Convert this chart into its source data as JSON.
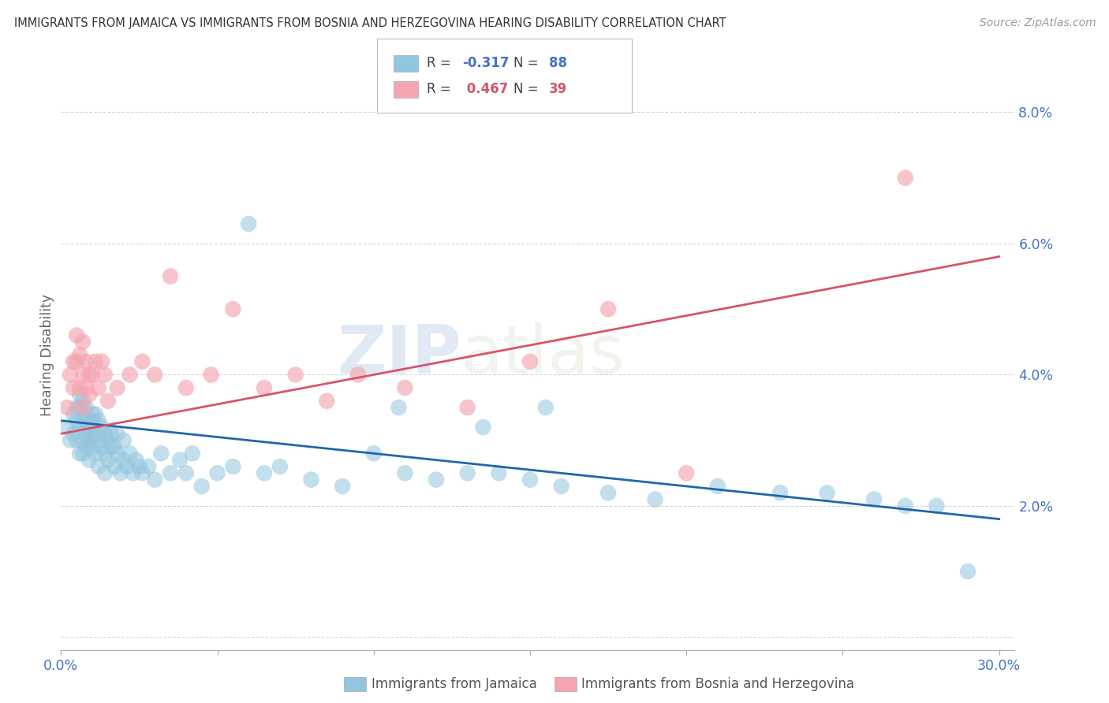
{
  "title": "IMMIGRANTS FROM JAMAICA VS IMMIGRANTS FROM BOSNIA AND HERZEGOVINA HEARING DISABILITY CORRELATION CHART",
  "source": "Source: ZipAtlas.com",
  "ylabel": "Hearing Disability",
  "yticks": [
    0.0,
    0.02,
    0.04,
    0.06,
    0.08
  ],
  "yticklabels": [
    "",
    "2.0%",
    "4.0%",
    "6.0%",
    "8.0%"
  ],
  "xtick_positions": [
    0.0,
    0.05,
    0.1,
    0.15,
    0.2,
    0.25,
    0.3
  ],
  "xlim": [
    0.0,
    0.305
  ],
  "ylim": [
    -0.002,
    0.088
  ],
  "legend1_label": "Immigrants from Jamaica",
  "legend2_label": "Immigrants from Bosnia and Herzegovina",
  "R1": -0.317,
  "N1": 88,
  "R2": 0.467,
  "N2": 39,
  "color_blue": "#92c5de",
  "color_pink": "#f4a5b0",
  "color_blue_line": "#2166ac",
  "color_pink_line": "#d6546a",
  "color_title": "#333333",
  "color_axis_text": "#4472C4",
  "watermark_zip": "ZIP",
  "watermark_atlas": "atlas",
  "blue_scatter_x": [
    0.002,
    0.003,
    0.004,
    0.004,
    0.005,
    0.005,
    0.005,
    0.006,
    0.006,
    0.006,
    0.006,
    0.007,
    0.007,
    0.007,
    0.007,
    0.008,
    0.008,
    0.008,
    0.008,
    0.009,
    0.009,
    0.009,
    0.01,
    0.01,
    0.01,
    0.01,
    0.011,
    0.011,
    0.011,
    0.012,
    0.012,
    0.012,
    0.013,
    0.013,
    0.014,
    0.014,
    0.014,
    0.015,
    0.015,
    0.016,
    0.016,
    0.017,
    0.017,
    0.018,
    0.018,
    0.019,
    0.02,
    0.02,
    0.021,
    0.022,
    0.023,
    0.024,
    0.025,
    0.026,
    0.028,
    0.03,
    0.032,
    0.035,
    0.038,
    0.04,
    0.042,
    0.045,
    0.05,
    0.055,
    0.06,
    0.065,
    0.07,
    0.08,
    0.09,
    0.1,
    0.11,
    0.12,
    0.13,
    0.14,
    0.15,
    0.16,
    0.175,
    0.19,
    0.21,
    0.23,
    0.245,
    0.26,
    0.27,
    0.28,
    0.108,
    0.135,
    0.155,
    0.29
  ],
  "blue_scatter_y": [
    0.032,
    0.03,
    0.034,
    0.031,
    0.033,
    0.03,
    0.035,
    0.032,
    0.028,
    0.035,
    0.037,
    0.03,
    0.033,
    0.036,
    0.028,
    0.031,
    0.033,
    0.029,
    0.035,
    0.03,
    0.032,
    0.027,
    0.031,
    0.034,
    0.029,
    0.033,
    0.028,
    0.031,
    0.034,
    0.03,
    0.026,
    0.033,
    0.029,
    0.032,
    0.028,
    0.031,
    0.025,
    0.03,
    0.027,
    0.029,
    0.031,
    0.026,
    0.029,
    0.028,
    0.031,
    0.025,
    0.027,
    0.03,
    0.026,
    0.028,
    0.025,
    0.027,
    0.026,
    0.025,
    0.026,
    0.024,
    0.028,
    0.025,
    0.027,
    0.025,
    0.028,
    0.023,
    0.025,
    0.026,
    0.063,
    0.025,
    0.026,
    0.024,
    0.023,
    0.028,
    0.025,
    0.024,
    0.025,
    0.025,
    0.024,
    0.023,
    0.022,
    0.021,
    0.023,
    0.022,
    0.022,
    0.021,
    0.02,
    0.02,
    0.035,
    0.032,
    0.035,
    0.01
  ],
  "pink_scatter_x": [
    0.002,
    0.003,
    0.004,
    0.004,
    0.005,
    0.005,
    0.006,
    0.006,
    0.007,
    0.007,
    0.007,
    0.008,
    0.008,
    0.009,
    0.009,
    0.01,
    0.011,
    0.012,
    0.013,
    0.014,
    0.015,
    0.018,
    0.022,
    0.026,
    0.03,
    0.035,
    0.04,
    0.048,
    0.055,
    0.065,
    0.075,
    0.085,
    0.095,
    0.11,
    0.13,
    0.15,
    0.175,
    0.2,
    0.27
  ],
  "pink_scatter_y": [
    0.035,
    0.04,
    0.042,
    0.038,
    0.042,
    0.046,
    0.038,
    0.043,
    0.04,
    0.045,
    0.035,
    0.042,
    0.038,
    0.04,
    0.037,
    0.04,
    0.042,
    0.038,
    0.042,
    0.04,
    0.036,
    0.038,
    0.04,
    0.042,
    0.04,
    0.055,
    0.038,
    0.04,
    0.05,
    0.038,
    0.04,
    0.036,
    0.04,
    0.038,
    0.035,
    0.042,
    0.05,
    0.025,
    0.07
  ],
  "blue_line_x": [
    0.0,
    0.3
  ],
  "blue_line_y": [
    0.033,
    0.018
  ],
  "pink_line_x": [
    0.0,
    0.3
  ],
  "pink_line_y": [
    0.031,
    0.058
  ]
}
